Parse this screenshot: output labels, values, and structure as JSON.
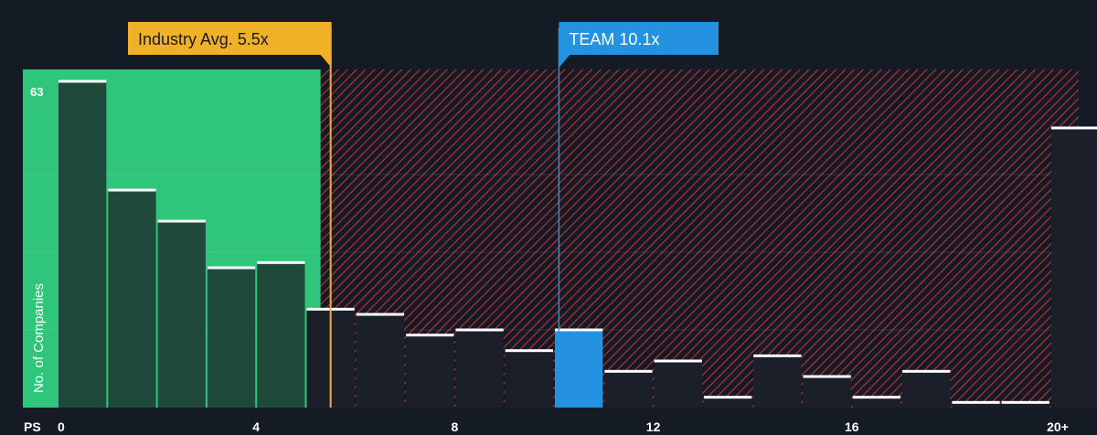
{
  "chart_data": {
    "type": "bar",
    "x_axis_title": "PS",
    "y_axis_title": "No. of Companies",
    "y_max_label": "63",
    "ylim": [
      0,
      63
    ],
    "x_ticks": [
      "0",
      "4",
      "8",
      "12",
      "16",
      "20+"
    ],
    "bin_width": 1,
    "bars": [
      {
        "x0": 0,
        "value": 63
      },
      {
        "x0": 1,
        "value": 42
      },
      {
        "x0": 2,
        "value": 36
      },
      {
        "x0": 3,
        "value": 27
      },
      {
        "x0": 4,
        "value": 28
      },
      {
        "x0": 5,
        "value": 19
      },
      {
        "x0": 6,
        "value": 18
      },
      {
        "x0": 7,
        "value": 14
      },
      {
        "x0": 8,
        "value": 15
      },
      {
        "x0": 9,
        "value": 11
      },
      {
        "x0": 10,
        "value": 15
      },
      {
        "x0": 11,
        "value": 7
      },
      {
        "x0": 12,
        "value": 9
      },
      {
        "x0": 13,
        "value": 2
      },
      {
        "x0": 14,
        "value": 10
      },
      {
        "x0": 15,
        "value": 6
      },
      {
        "x0": 16,
        "value": 2
      },
      {
        "x0": 17,
        "value": 7
      },
      {
        "x0": 18,
        "value": 1
      },
      {
        "x0": 19,
        "value": 1
      },
      {
        "x0": 20,
        "value": 54
      }
    ],
    "green_zone_until": 5.3,
    "industry_avg": {
      "label": "Industry Avg. 5.5x",
      "value": 5.5
    },
    "company": {
      "label": "TEAM 10.1x",
      "value": 10.1,
      "bin": 10
    },
    "colors": {
      "background": "#151b24",
      "green_zone": "#2fc57a",
      "green_bar": "#1f4a3b",
      "red_hatch": "#c5303a",
      "dark_bar": "#1b1f29",
      "highlight_bar": "#2492e0",
      "industry_line": "#eeb127",
      "company_line": "#2492e0",
      "bar_cap": "#ffffff"
    }
  }
}
